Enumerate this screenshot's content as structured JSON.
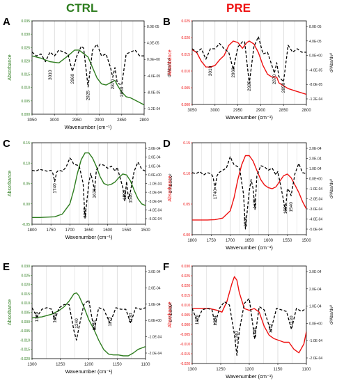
{
  "titles": {
    "left": "CTRL",
    "right": "PRE"
  },
  "colors": {
    "ctrl": "#2e7d1f",
    "pre": "#ee1111",
    "deriv": "#000000",
    "grid": "#c8c8c8"
  },
  "panels": [
    {
      "letter": "A",
      "ylabel": "Absorbance",
      "y2label": "d²Abs/dν²",
      "xlabel": "Wavenumber (cm⁻¹)",
      "xticks": [
        "3050",
        "3000",
        "2950",
        "2900",
        "2850",
        "2800"
      ],
      "yticks": [
        "0.000",
        "0.005",
        "0.010",
        "0.015",
        "0.020",
        "0.025",
        "0.030",
        "0.035"
      ],
      "y2ticks": [
        "8.0E-05",
        "4.0E-05",
        "0.0E+00",
        "-4.0E-05",
        "-8.0E-05",
        "-1.2E-04"
      ],
      "annotations": [
        "3010",
        "2960",
        "2925",
        "2870",
        "2850"
      ]
    },
    {
      "letter": "B",
      "ylabel": "Absorbance",
      "y2label": "d²Abs/dν²",
      "xlabel": "Wavenumber (cm⁻¹)",
      "xticks": [
        "3050",
        "3000",
        "2950",
        "2900",
        "2850",
        "2800"
      ],
      "yticks": [
        "0.000",
        "0.005",
        "0.010",
        "0.015",
        "0.020",
        "0.025"
      ],
      "y2ticks": [
        "8.0E-05",
        "4.0E-05",
        "0.0E+00",
        "-4.0E-05",
        "-8.0E-05",
        "-1.2E-04"
      ],
      "annotations": [
        "3010",
        "2960",
        "2925",
        "2870",
        "2850"
      ]
    },
    {
      "letter": "C",
      "ylabel": "Absorbance",
      "y2label": "d²Abs/dν²",
      "xlabel": "Wavenumber (cm⁻¹)",
      "xticks": [
        "1800",
        "1750",
        "1700",
        "1650",
        "1600",
        "1550",
        "1500"
      ],
      "yticks": [
        "-0.05",
        "0.00",
        "0.05",
        "0.10",
        "0.15"
      ],
      "y2ticks": [
        "3.0E-04",
        "2.0E-04",
        "1.0E-04",
        "0.0E+00",
        "-1.0E-04",
        "-2.0E-04",
        "-3.0E-04",
        "-4.0E-04",
        "-5.0E-04"
      ],
      "annotations": [
        "1740",
        "1660",
        "1635",
        "1555",
        "1540"
      ]
    },
    {
      "letter": "D",
      "ylabel": "Absorbance",
      "y2label": "d²Abs/dν²",
      "xlabel": "Wavenumber (cm⁻¹)",
      "xticks": [
        "1800",
        "1750",
        "1700",
        "1650",
        "1600",
        "1550",
        "1500"
      ],
      "yticks": [
        "0.00",
        "0.05",
        "0.10",
        "0.15"
      ],
      "y2ticks": [
        "3.0E-04",
        "2.0E-04",
        "1.0E-04",
        "0.0E+00",
        "-1.0E-04",
        "-2.0E-04",
        "-3.0E-04",
        "-4.0E-04",
        "-5.0E-04"
      ],
      "annotations": [
        "1740",
        "1660",
        "1635",
        "1555",
        "1540"
      ]
    },
    {
      "letter": "E",
      "ylabel": "Absorbance",
      "y2label": "d²Abs/dν²",
      "xlabel": "Wavenumber (cm⁻¹)",
      "xticks": [
        "1300",
        "1250",
        "1200",
        "1150",
        "1100"
      ],
      "yticks": [
        "-0.020",
        "-0.015",
        "-0.010",
        "-0.005",
        "0.000",
        "0.005",
        "0.010",
        "0.015",
        "0.020",
        "0.025",
        "0.030"
      ],
      "y2ticks": [
        "3.0E-04",
        "2.0E-04",
        "1.0E-04",
        "0.0E+00",
        "-1.0E-04",
        "-2.0E-04"
      ],
      "annotations": [
        "1320",
        "1284",
        "1240",
        "1204",
        "1172",
        "1130"
      ]
    },
    {
      "letter": "F",
      "ylabel": "Absorbance",
      "y2label": "d²Abs/dν²",
      "xlabel": "Wavenumber (cm⁻¹)",
      "xticks": [
        "1300",
        "1250",
        "1200",
        "1150",
        "1100"
      ],
      "yticks": [
        "-0.020",
        "-0.015",
        "-0.010",
        "-0.005",
        "0.000",
        "0.005",
        "0.010",
        "0.015",
        "0.020",
        "0.025",
        "0.030"
      ],
      "y2ticks": [
        "3.0E-04",
        "2.0E-04",
        "1.0E-04",
        "0.0E+00",
        "-1.0E-04",
        "-2.0E-04"
      ],
      "annotations": [
        "1320",
        "1284",
        "1240",
        "1204",
        "1172",
        "1130"
      ]
    }
  ],
  "chart_data": [
    {
      "type": "line",
      "panel": "A",
      "group": "CTRL",
      "xlim": [
        3050,
        2800
      ],
      "ylim": [
        -0.005,
        0.035
      ],
      "y2lim": [
        -0.00014,
        0.0001
      ],
      "series": [
        {
          "axis": "left",
          "style": "solid",
          "x": [
            3050,
            3030,
            3010,
            2990,
            2970,
            2955,
            2945,
            2935,
            2925,
            2915,
            2905,
            2895,
            2885,
            2875,
            2865,
            2860,
            2850,
            2840,
            2830,
            2820,
            2810,
            2800
          ],
          "y": [
            0.02,
            0.019,
            0.0175,
            0.017,
            0.02,
            0.0225,
            0.0225,
            0.021,
            0.0195,
            0.015,
            0.0105,
            0.008,
            0.0075,
            0.0085,
            0.0095,
            0.0075,
            0.0045,
            0.0025,
            0.002,
            0.001,
            0.0,
            -0.001
          ]
        },
        {
          "axis": "right",
          "style": "dashed",
          "x": [
            3050,
            3040,
            3030,
            3020,
            3010,
            3000,
            2990,
            2980,
            2970,
            2960,
            2950,
            2940,
            2935,
            2925,
            2915,
            2905,
            2895,
            2885,
            2875,
            2870,
            2865,
            2860,
            2850,
            2840,
            2830,
            2820,
            2810,
            2800
          ],
          "y": [
            2e-05,
            1e-05,
            1.5e-05,
            -5e-06,
            2e-05,
            1e-05,
            2.5e-05,
            2e-05,
            1.5e-05,
            -3e-05,
            1e-05,
            3.5e-05,
            3e-05,
            -7e-05,
            2.5e-05,
            4e-05,
            1e-05,
            1.5e-05,
            -2e-05,
            -4.5e-05,
            -2e-05,
            -6e-05,
            -6.5e-05,
            1.5e-05,
            2e-05,
            2.5e-05,
            1e-05,
            1e-05
          ]
        }
      ]
    },
    {
      "type": "line",
      "panel": "B",
      "group": "PRE",
      "xlim": [
        3050,
        2800
      ],
      "ylim": [
        -0.002,
        0.027
      ],
      "y2lim": [
        -0.00014,
        0.0001
      ],
      "series": [
        {
          "axis": "left",
          "style": "solid",
          "x": [
            3050,
            3040,
            3030,
            3020,
            3010,
            3000,
            2990,
            2980,
            2970,
            2960,
            2950,
            2940,
            2930,
            2925,
            2915,
            2905,
            2895,
            2885,
            2875,
            2865,
            2860,
            2850,
            2840,
            2830,
            2820,
            2810,
            2800
          ],
          "y": [
            0.017,
            0.016,
            0.013,
            0.011,
            0.011,
            0.0115,
            0.0135,
            0.015,
            0.0185,
            0.02,
            0.0195,
            0.0175,
            0.0195,
            0.02,
            0.019,
            0.016,
            0.0115,
            0.0085,
            0.0075,
            0.0075,
            0.0055,
            0.0045,
            0.0035,
            0.003,
            0.0025,
            0.002,
            0.0015
          ]
        },
        {
          "axis": "right",
          "style": "dashed",
          "x": [
            3050,
            3040,
            3030,
            3020,
            3010,
            3000,
            2990,
            2980,
            2970,
            2960,
            2950,
            2940,
            2935,
            2925,
            2915,
            2905,
            2895,
            2885,
            2875,
            2870,
            2865,
            2860,
            2850,
            2840,
            2830,
            2820,
            2810,
            2800
          ],
          "y": [
            2e-05,
            1e-05,
            2e-05,
            -1e-05,
            2e-05,
            2e-05,
            3.5e-05,
            2e-05,
            1e-05,
            -4e-05,
            2.5e-05,
            4e-05,
            4e-05,
            -8e-05,
            2.5e-05,
            5.5e-05,
            5e-06,
            1e-05,
            -3e-05,
            -5e-05,
            -2e-05,
            -6e-05,
            -7.5e-05,
            3e-05,
            1e-05,
            2e-05,
            1e-05,
            1e-05
          ]
        }
      ]
    },
    {
      "type": "line",
      "panel": "C",
      "group": "CTRL",
      "xlim": [
        1800,
        1500
      ],
      "ylim": [
        -0.05,
        0.19
      ],
      "y2lim": [
        -0.0005,
        0.0003
      ],
      "series": [
        {
          "axis": "left",
          "style": "solid",
          "x": [
            1800,
            1780,
            1760,
            1740,
            1720,
            1700,
            1690,
            1680,
            1670,
            1660,
            1650,
            1640,
            1630,
            1620,
            1610,
            1600,
            1590,
            1580,
            1570,
            1560,
            1550,
            1540,
            1530,
            1520,
            1510,
            1500
          ],
          "y": [
            -0.03,
            -0.03,
            -0.029,
            -0.028,
            -0.02,
            0.01,
            0.05,
            0.1,
            0.14,
            0.16,
            0.16,
            0.145,
            0.12,
            0.09,
            0.07,
            0.065,
            0.068,
            0.075,
            0.088,
            0.098,
            0.095,
            0.078,
            0.05,
            0.025,
            0.01,
            0.005
          ]
        },
        {
          "axis": "right",
          "style": "dashed",
          "x": [
            1800,
            1790,
            1780,
            1770,
            1760,
            1750,
            1745,
            1740,
            1735,
            1730,
            1720,
            1710,
            1700,
            1695,
            1690,
            1680,
            1675,
            1665,
            1660,
            1650,
            1645,
            1640,
            1635,
            1630,
            1620,
            1610,
            1600,
            1590,
            1580,
            1575,
            1560,
            1555,
            1550,
            1545,
            1540,
            1530,
            1520,
            1510,
            1500
          ],
          "y": [
            3e-05,
            2e-05,
            4e-05,
            3e-05,
            2e-05,
            3e-05,
            0.0,
            -8e-05,
            1e-05,
            3e-05,
            2e-05,
            6e-05,
            0.00015,
            0.00013,
            9e-05,
            8e-05,
            7e-05,
            -0.0001,
            -0.00044,
            -0.0001,
            0.0,
            -7e-05,
            -0.00017,
            3e-05,
            9e-05,
            8e-05,
            5e-05,
            7e-05,
            2e-05,
            6e-05,
            -0.00014,
            -0.00027,
            -8e-05,
            -0.00025,
            -0.00018,
            2e-05,
            0.00011,
            4e-05,
            2e-05
          ]
        }
      ]
    },
    {
      "type": "line",
      "panel": "D",
      "group": "PRE",
      "xlim": [
        1800,
        1500
      ],
      "ylim": [
        -0.06,
        0.19
      ],
      "y2lim": [
        -0.0005,
        0.0003
      ],
      "series": [
        {
          "axis": "left",
          "style": "solid",
          "x": [
            1800,
            1780,
            1760,
            1740,
            1720,
            1700,
            1690,
            1680,
            1670,
            1660,
            1650,
            1640,
            1630,
            1620,
            1610,
            1600,
            1590,
            1580,
            1570,
            1560,
            1550,
            1540,
            1530,
            1520,
            1510,
            1500
          ],
          "y": [
            -0.02,
            -0.02,
            -0.02,
            -0.019,
            -0.015,
            0.005,
            0.04,
            0.09,
            0.13,
            0.155,
            0.155,
            0.14,
            0.115,
            0.09,
            0.075,
            0.068,
            0.065,
            0.07,
            0.085,
            0.1,
            0.105,
            0.095,
            0.075,
            0.055,
            0.03,
            0.01
          ]
        },
        {
          "axis": "right",
          "style": "dashed",
          "x": [
            1800,
            1790,
            1780,
            1770,
            1760,
            1750,
            1745,
            1740,
            1735,
            1730,
            1720,
            1710,
            1700,
            1695,
            1690,
            1680,
            1675,
            1665,
            1660,
            1650,
            1645,
            1640,
            1635,
            1630,
            1620,
            1610,
            1600,
            1590,
            1580,
            1575,
            1560,
            1555,
            1550,
            1545,
            1540,
            1530,
            1520,
            1510,
            1500
          ],
          "y": [
            4e-05,
            3e-05,
            5e-05,
            2e-05,
            4e-05,
            3e-05,
            0.0,
            -0.0001,
            1e-05,
            4e-05,
            6e-05,
            8e-05,
            0.00018,
            0.00014,
            0.00011,
            9e-05,
            7e-05,
            -0.00015,
            -0.00045,
            -0.00012,
            -2e-05,
            -0.0001,
            -0.00028,
            1e-05,
            0.0001,
            9e-05,
            6e-05,
            8e-05,
            2e-05,
            5e-05,
            -0.0002,
            -0.0003,
            -0.0001,
            -0.00012,
            -0.00016,
            3e-05,
            0.00012,
            4e-05,
            3e-05
          ]
        }
      ]
    },
    {
      "type": "line",
      "panel": "E",
      "group": "CTRL",
      "xlim": [
        1330,
        1100
      ],
      "ylim": [
        -0.02,
        0.03
      ],
      "y2lim": [
        -0.0003,
        0.0003
      ],
      "series": [
        {
          "axis": "left",
          "style": "solid",
          "x": [
            1330,
            1310,
            1290,
            1275,
            1265,
            1255,
            1245,
            1240,
            1235,
            1225,
            1215,
            1205,
            1195,
            1185,
            1175,
            1165,
            1155,
            1145,
            1135,
            1125,
            1115,
            1105,
            1100
          ],
          "y": [
            0.002,
            0.0025,
            0.004,
            0.006,
            0.008,
            0.011,
            0.015,
            0.0155,
            0.014,
            0.008,
            0.001,
            -0.004,
            -0.01,
            -0.015,
            -0.0175,
            -0.018,
            -0.018,
            -0.0185,
            -0.0185,
            -0.017,
            -0.015,
            -0.014,
            -0.0135
          ]
        },
        {
          "axis": "right",
          "style": "dashed",
          "x": [
            1330,
            1320,
            1310,
            1300,
            1290,
            1284,
            1275,
            1265,
            1255,
            1245,
            1240,
            1235,
            1225,
            1215,
            1204,
            1195,
            1185,
            1172,
            1160,
            1150,
            1140,
            1130,
            1120,
            1110,
            1100
          ],
          "y": [
            3e-05,
            -3e-05,
            2e-05,
            3e-05,
            2e-05,
            -5e-05,
            3e-05,
            5e-05,
            5e-05,
            -0.00012,
            -0.00018,
            -0.0001,
            5e-05,
            8e-05,
            -0.00012,
            3e-05,
            2e-05,
            -7e-05,
            3e-05,
            2e-05,
            2e-05,
            -7e-05,
            3e-05,
            2e-05,
            3e-05
          ]
        }
      ]
    },
    {
      "type": "line",
      "panel": "F",
      "group": "PRE",
      "xlim": [
        1330,
        1100
      ],
      "ylim": [
        -0.025,
        0.03
      ],
      "y2lim": [
        -0.0003,
        0.0003
      ],
      "series": [
        {
          "axis": "left",
          "style": "solid",
          "x": [
            1330,
            1310,
            1295,
            1280,
            1270,
            1260,
            1250,
            1245,
            1240,
            1235,
            1225,
            1215,
            1205,
            1195,
            1185,
            1175,
            1165,
            1155,
            1145,
            1135,
            1125,
            1115,
            1105,
            1100
          ],
          "y": [
            0.006,
            0.006,
            0.006,
            0.005,
            0.004,
            0.01,
            0.02,
            0.024,
            0.022,
            0.015,
            0.006,
            0.005,
            0.006,
            0.004,
            -0.004,
            -0.009,
            -0.011,
            -0.012,
            -0.013,
            -0.013,
            -0.017,
            -0.019,
            -0.014,
            -0.007
          ]
        },
        {
          "axis": "right",
          "style": "dashed",
          "x": [
            1330,
            1320,
            1310,
            1300,
            1290,
            1284,
            1275,
            1265,
            1255,
            1245,
            1240,
            1235,
            1225,
            1215,
            1204,
            1195,
            1185,
            1172,
            1160,
            1150,
            1140,
            1130,
            1120,
            1110,
            1100
          ],
          "y": [
            4e-05,
            -4e-05,
            3e-05,
            4e-05,
            3e-05,
            -6e-05,
            4e-05,
            8e-05,
            6e-05,
            -0.00012,
            -0.00025,
            -0.0001,
            7e-05,
            0.0001,
            -0.00015,
            5e-05,
            3e-05,
            -0.0001,
            4e-05,
            3e-05,
            2e-05,
            -9e-05,
            4e-05,
            2e-05,
            4e-05
          ]
        }
      ]
    }
  ]
}
